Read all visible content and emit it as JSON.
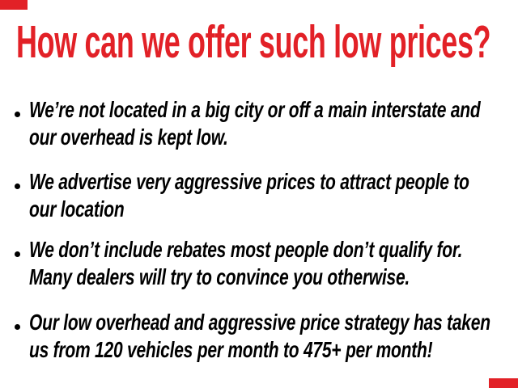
{
  "slide": {
    "background_color": "#ffffff",
    "accent_color": "#e22127",
    "text_color": "#000000",
    "title": "How can we offer such low prices?",
    "bullet_glyph": "•",
    "bullet_items": [
      {
        "lines": [
          "We’re not located in a big city or off a main interstate and",
          "our overhead is kept low."
        ]
      },
      {
        "lines": [
          "We advertise very aggressive prices to attract people to",
          "our location"
        ]
      },
      {
        "lines": [
          "We don’t include rebates most people don’t qualify for.",
          "Many dealers will try to convince you otherwise."
        ]
      },
      {
        "lines": [
          "Our low overhead and aggressive price strategy has taken",
          "us from 120 vehicles per month to 475+ per month!"
        ]
      }
    ]
  }
}
